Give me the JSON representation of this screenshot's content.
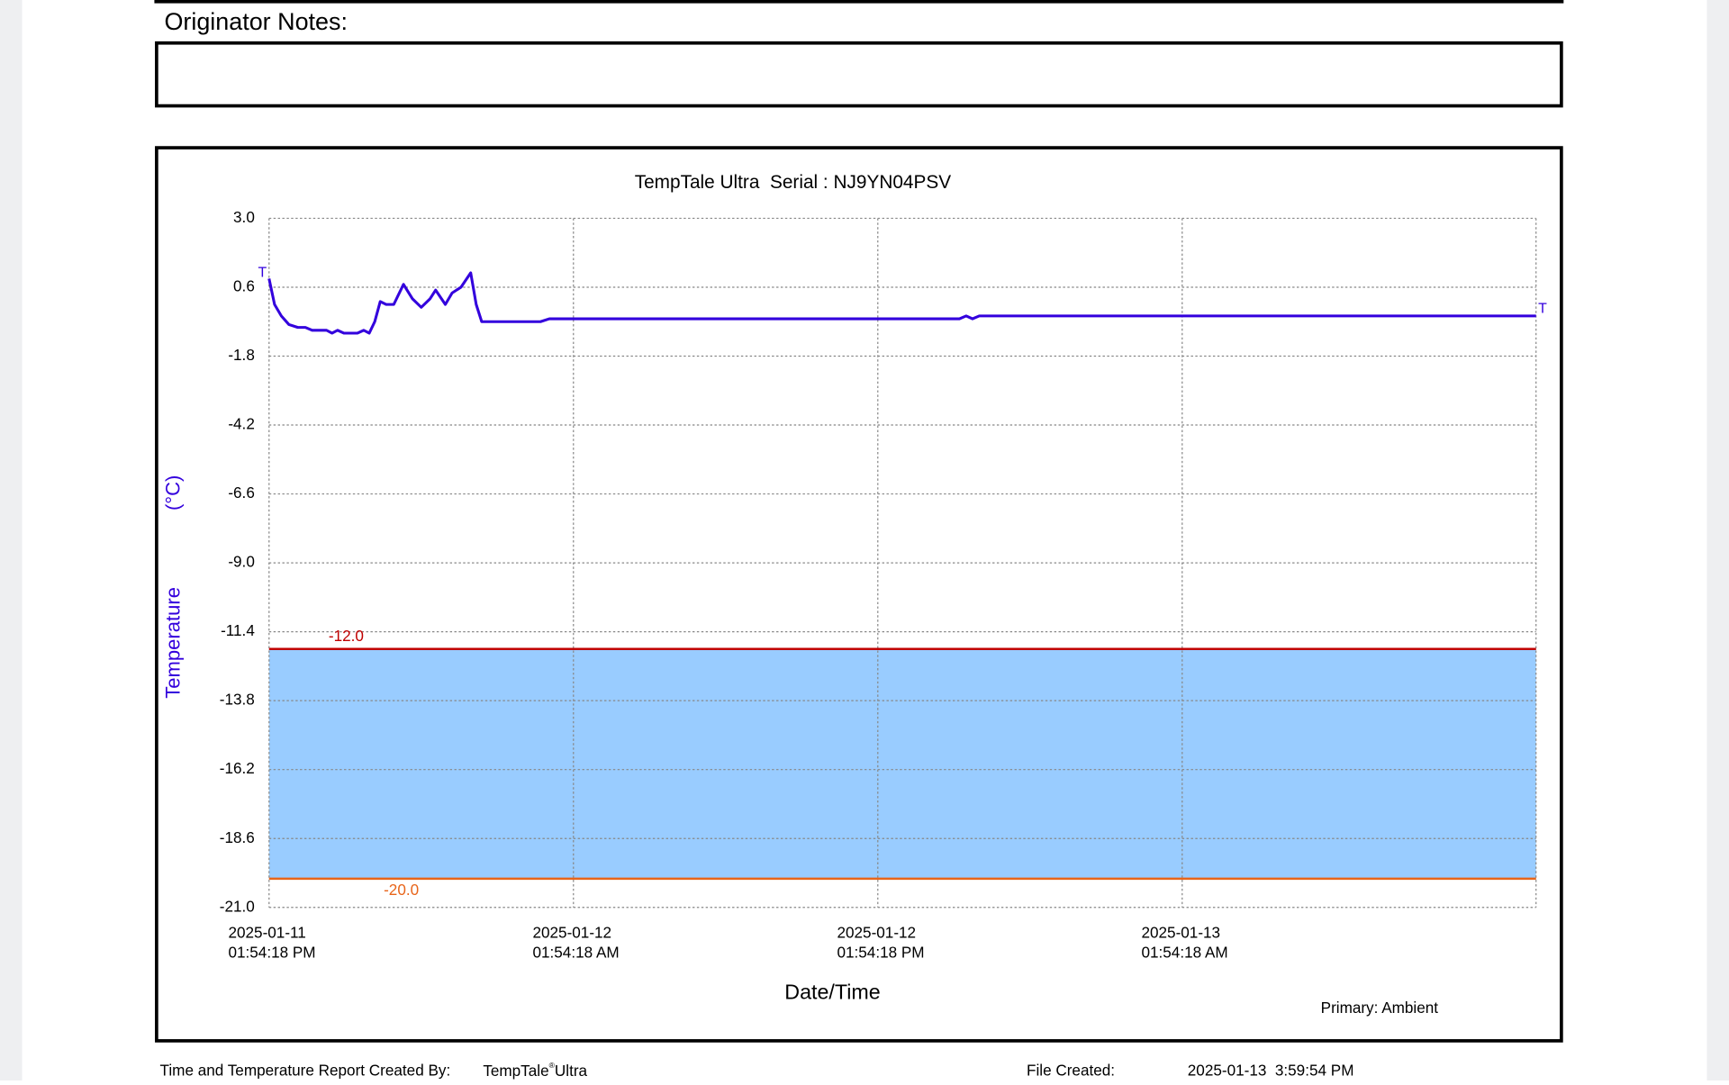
{
  "notes_label": "Originator Notes:",
  "chart_data": {
    "type": "line",
    "title": "TempTale Ultra  Serial : NJ9YN04PSV",
    "y_label": "Temperature",
    "y_unit": "(°C)",
    "x_label": "Date/Time",
    "legend": "Primary: Ambient",
    "start_marker": "T",
    "end_marker": "T",
    "xlim": [
      "2025-01-11T13:54:18",
      "2025-01-13T15:51:18"
    ],
    "xticks": [
      {
        "value": "2025-01-11T13:54:18",
        "label": [
          "2025-01-11",
          "01:54:18 PM"
        ]
      },
      {
        "value": "2025-01-12T01:54:18",
        "label": [
          "2025-01-12",
          "01:54:18 AM"
        ]
      },
      {
        "value": "2025-01-12T13:54:18",
        "label": [
          "2025-01-12",
          "01:54:18 PM"
        ]
      },
      {
        "value": "2025-01-13T01:54:18",
        "label": [
          "2025-01-13",
          "01:54:18 AM"
        ]
      }
    ],
    "ylim": [
      -21,
      3
    ],
    "yticks": [
      {
        "value": 3,
        "label": "3.0"
      },
      0.6,
      -1.8,
      -4.2,
      -6.6,
      {
        "value": -9,
        "label": "-9.0"
      },
      -11.4,
      -13.8,
      -16.2,
      -18.6,
      {
        "value": -21,
        "label": "-21.0"
      }
    ],
    "grid": true,
    "band_color": "#99ccff",
    "limits": [
      {
        "value": -12,
        "label": "-12.0",
        "color": "#c00000"
      },
      {
        "value": -20,
        "label": "-20.0",
        "color": "#e8651a"
      }
    ],
    "series": [
      {
        "name": "Ambient",
        "color": "#3300dd",
        "x": [
          "2025-01-11T13:54:18",
          "2025-01-11T14:07:18",
          "2025-01-11T14:23:18",
          "2025-01-11T14:41:18",
          "2025-01-11T15:02:18",
          "2025-01-11T15:20:18",
          "2025-01-11T15:36:18",
          "2025-01-11T16:10:18",
          "2025-01-11T16:23:18",
          "2025-01-11T16:36:18",
          "2025-01-11T16:51:18",
          "2025-01-11T17:23:18",
          "2025-01-11T17:38:18",
          "2025-01-11T17:51:18",
          "2025-01-11T18:04:18",
          "2025-01-11T18:17:18",
          "2025-01-11T18:31:18",
          "2025-01-11T18:49:18",
          "2025-01-11T19:12:18",
          "2025-01-11T19:33:18",
          "2025-01-11T19:54:18",
          "2025-01-11T20:15:18",
          "2025-01-11T20:28:18",
          "2025-01-11T20:51:18",
          "2025-01-11T21:07:18",
          "2025-01-11T21:28:18",
          "2025-01-11T21:51:18",
          "2025-01-11T22:04:18",
          "2025-01-11T22:17:18",
          "2025-01-12T00:36:18",
          "2025-01-12T00:57:18",
          "2025-01-12T17:07:18",
          "2025-01-12T17:23:18",
          "2025-01-12T17:38:18",
          "2025-01-12T17:54:18",
          "2025-01-13T15:51:18"
        ],
        "values": [
          0.9,
          0.0,
          -0.4,
          -0.7,
          -0.8,
          -0.8,
          -0.9,
          -0.9,
          -1.0,
          -0.9,
          -1.0,
          -1.0,
          -0.9,
          -1.0,
          -0.6,
          0.1,
          0.0,
          0.0,
          0.7,
          0.2,
          -0.1,
          0.2,
          0.5,
          0.0,
          0.4,
          0.6,
          1.1,
          0.0,
          -0.6,
          -0.6,
          -0.5,
          -0.5,
          -0.4,
          -0.5,
          -0.4,
          -0.4
        ]
      }
    ]
  },
  "footer": {
    "created_by_label": "Time and Temperature Report Created By:",
    "created_by": "TempTale",
    "created_by_mark": "®",
    "created_by_suffix": "Ultra",
    "file_created_label": "File Created:",
    "file_created": "2025-01-13  3:59:54 PM"
  }
}
